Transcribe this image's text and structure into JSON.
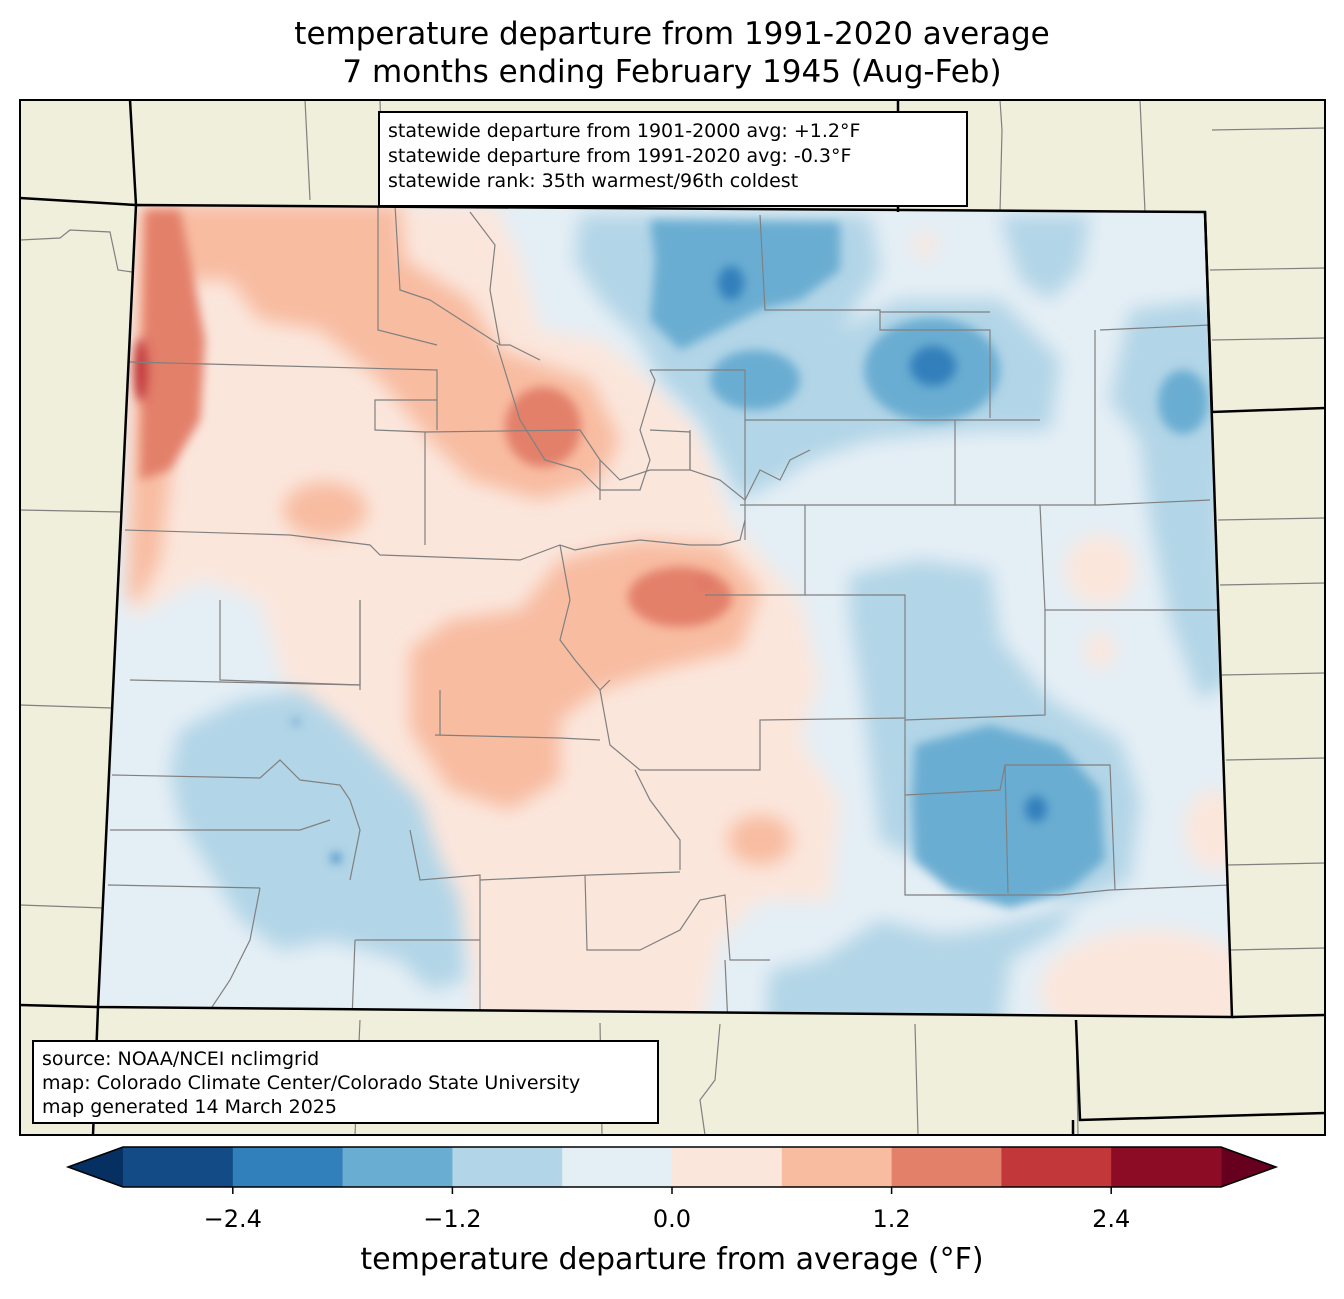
{
  "title": {
    "line1": "temperature departure from 1991-2020 average",
    "line2": "7 months ending February 1945 (Aug-Feb)"
  },
  "stats_box": {
    "line1": "statewide departure from 1901-2000 avg: +1.2°F",
    "line2": "statewide departure from 1991-2020 avg: -0.3°F",
    "line3": "statewide rank: 35th warmest/96th coldest"
  },
  "source_box": {
    "line1": "source: NOAA/NCEI nclimgrid",
    "line2": "map: Colorado Climate Center/Colorado State University",
    "line3": "map generated 14 March 2025"
  },
  "colorbar": {
    "label": "temperature departure from average (°F)",
    "bins": [
      -3.0,
      -2.4,
      -1.8,
      -1.2,
      -0.6,
      0.0,
      0.6,
      1.2,
      1.8,
      2.4,
      3.0
    ],
    "colors": [
      "#134b87",
      "#317fbb",
      "#6aadd2",
      "#b2d5e7",
      "#e4eef5",
      "#fbe6dc",
      "#f8bca1",
      "#e3806a",
      "#c1373a",
      "#8c0c25"
    ],
    "under_color": "#053061",
    "over_color": "#67001f",
    "tick_values": [
      -2.4,
      -1.2,
      0.0,
      1.2,
      2.4
    ],
    "tick_labels": [
      "−2.4",
      "−1.2",
      "0.0",
      "1.2",
      "2.4"
    ]
  },
  "map_colors": {
    "land": "#efefdc",
    "state_border": "#000000",
    "county_border": "#808080"
  }
}
